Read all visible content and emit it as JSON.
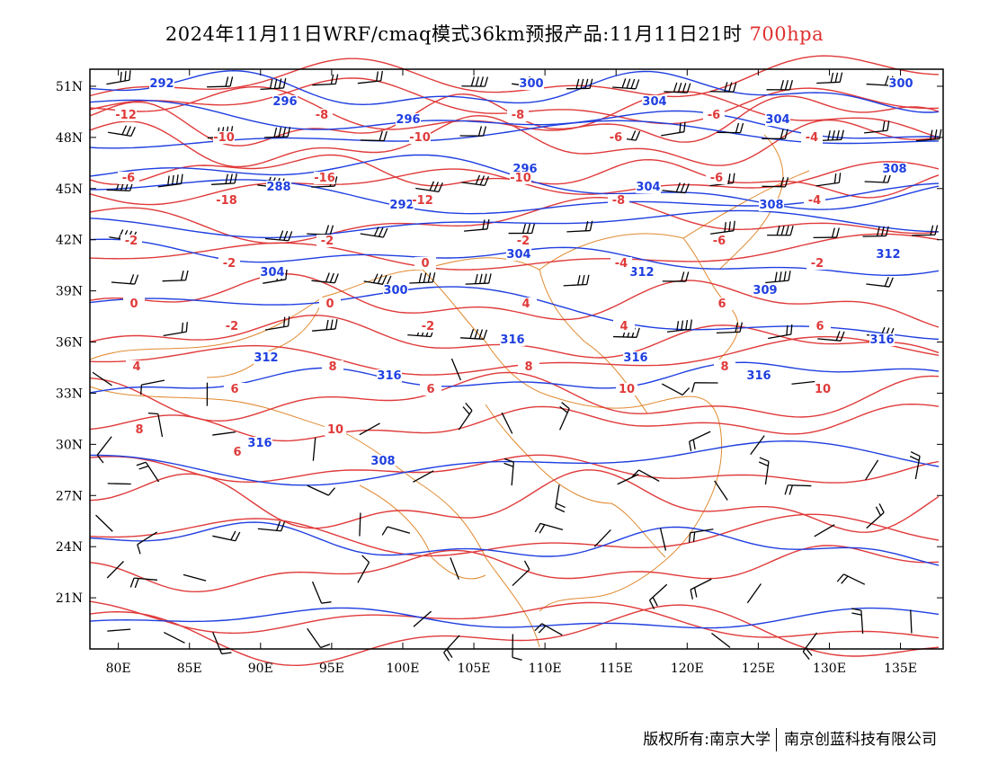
{
  "title": {
    "main": "2024年11月11日WRF/cmaq模式36km预报产品:11月11日21时",
    "level": "700hpa",
    "level_color": "#e03030"
  },
  "axes": {
    "lat_ticks": [
      "51N",
      "48N",
      "45N",
      "42N",
      "39N",
      "36N",
      "33N",
      "30N",
      "27N",
      "24N",
      "21N"
    ],
    "lat_values": [
      51,
      48,
      45,
      42,
      39,
      36,
      33,
      30,
      27,
      24,
      21
    ],
    "lon_ticks": [
      "80E",
      "85E",
      "90E",
      "95E",
      "100E",
      "105E",
      "110E",
      "115E",
      "120E",
      "125E",
      "130E",
      "135E"
    ],
    "lon_values": [
      80,
      85,
      90,
      95,
      100,
      105,
      110,
      115,
      120,
      125,
      130,
      135
    ],
    "lon_range": [
      78,
      138
    ],
    "lat_range": [
      18,
      52
    ]
  },
  "colors": {
    "temperature": "#e03a3a",
    "geopotential": "#1f3fe0",
    "border": "#e08a30",
    "barb": "#000000"
  },
  "geopotential_labels": [
    "292",
    "296",
    "296",
    "300",
    "304",
    "304",
    "300",
    "288",
    "292",
    "296",
    "304",
    "308",
    "308",
    "304",
    "300",
    "304",
    "312",
    "309",
    "312",
    "312",
    "316",
    "316",
    "316",
    "316",
    "316",
    "316",
    "308"
  ],
  "temperature_labels": [
    "-12",
    "-10",
    "-8",
    "-10",
    "-8",
    "-6",
    "-6",
    "-4",
    "-6",
    "-18",
    "-16",
    "-12",
    "-10",
    "-8",
    "-6",
    "-4",
    "-2",
    "-2",
    "-2",
    "0",
    "-2",
    "-4",
    "-6",
    "-2",
    "0",
    "-2",
    "0",
    "-2",
    "4",
    "4",
    "6",
    "6",
    "4",
    "6",
    "8",
    "6",
    "8",
    "10",
    "8",
    "10",
    "8",
    "6",
    "10"
  ],
  "footer": {
    "copyright": "版权所有:南京大学",
    "company": "南京创蓝科技有限公司"
  }
}
